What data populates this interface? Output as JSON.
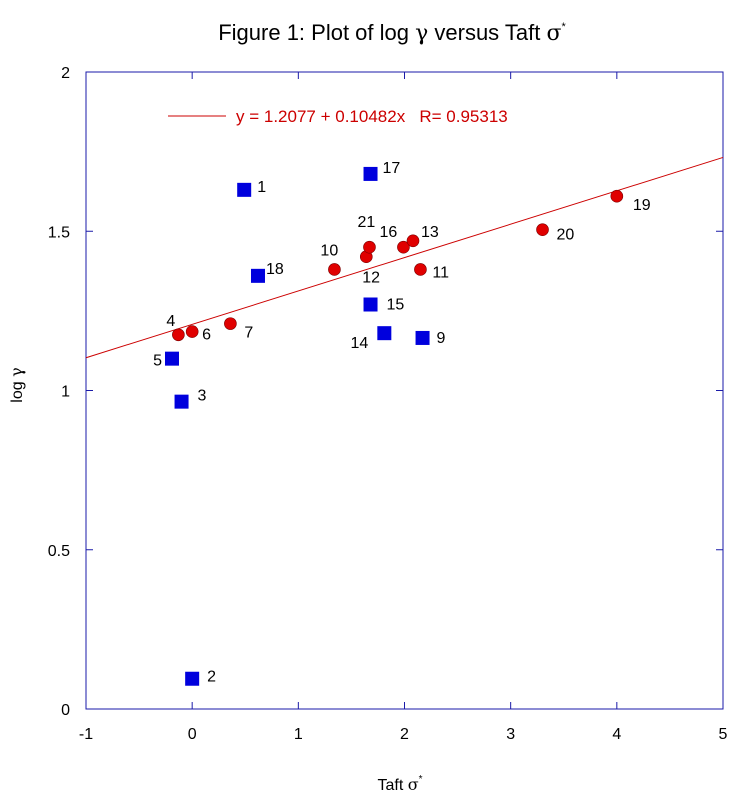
{
  "chart_data": {
    "type": "scatter",
    "title": {
      "main": "Figure 1: Plot of log ",
      "greek": "γ",
      "mid": " versus Taft ",
      "symbol": "σ",
      "sup": "*"
    },
    "xlabel": {
      "text": "Taft ",
      "symbol": "σ",
      "sup": "*"
    },
    "ylabel": {
      "text": "log ",
      "symbol": "γ"
    },
    "xlim": [
      -1,
      5
    ],
    "ylim": [
      0,
      2
    ],
    "x_ticks": [
      "-1",
      "0",
      "1",
      "2",
      "3",
      "4",
      "5"
    ],
    "y_ticks": [
      "0",
      "0.5",
      "1",
      "1.5",
      "2"
    ],
    "fit": {
      "intercept": 1.2077,
      "slope": 0.10482,
      "label": "y = 1.2077 + 0.10482x   R= 0.95313",
      "color": "#cc0000"
    },
    "series": [
      {
        "marker": "circle",
        "color": "#e00000",
        "points": [
          {
            "label": "4",
            "x": -0.13,
            "y": 1.175
          },
          {
            "label": "6",
            "x": 0.0,
            "y": 1.185
          },
          {
            "label": "7",
            "x": 0.36,
            "y": 1.21
          },
          {
            "label": "10",
            "x": 1.34,
            "y": 1.38
          },
          {
            "label": "12",
            "x": 1.64,
            "y": 1.42
          },
          {
            "label": "21",
            "x": 1.67,
            "y": 1.45
          },
          {
            "label": "16",
            "x": 1.99,
            "y": 1.45
          },
          {
            "label": "13",
            "x": 2.08,
            "y": 1.47
          },
          {
            "label": "11",
            "x": 2.15,
            "y": 1.38
          },
          {
            "label": "20",
            "x": 3.3,
            "y": 1.505
          },
          {
            "label": "19",
            "x": 4.0,
            "y": 1.61
          }
        ]
      },
      {
        "marker": "square",
        "color": "#0000dd",
        "points": [
          {
            "label": "1",
            "x": 0.49,
            "y": 1.63
          },
          {
            "label": "2",
            "x": 0.0,
            "y": 0.095
          },
          {
            "label": "3",
            "x": -0.1,
            "y": 0.965
          },
          {
            "label": "5",
            "x": -0.19,
            "y": 1.1
          },
          {
            "label": "18",
            "x": 0.62,
            "y": 1.36
          },
          {
            "label": "17",
            "x": 1.68,
            "y": 1.68
          },
          {
            "label": "15",
            "x": 1.68,
            "y": 1.27
          },
          {
            "label": "14",
            "x": 1.81,
            "y": 1.18
          },
          {
            "label": "9",
            "x": 2.17,
            "y": 1.165
          }
        ]
      }
    ]
  }
}
